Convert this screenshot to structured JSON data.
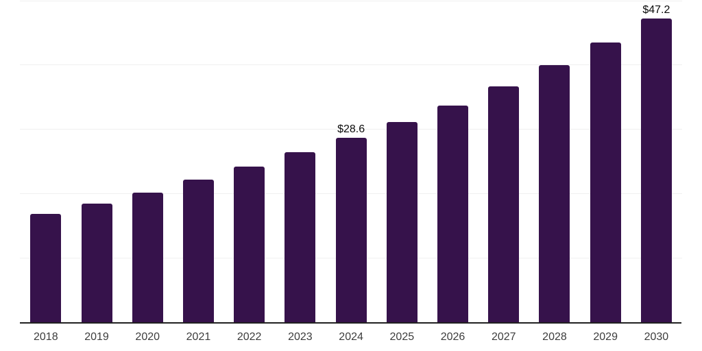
{
  "chart_data": {
    "type": "bar",
    "title": "",
    "xlabel": "",
    "ylabel": "",
    "categories": [
      "2018",
      "2019",
      "2020",
      "2021",
      "2022",
      "2023",
      "2024",
      "2025",
      "2026",
      "2027",
      "2028",
      "2029",
      "2030"
    ],
    "values": [
      16.8,
      18.4,
      20.1,
      22.1,
      24.2,
      26.4,
      28.6,
      31.1,
      33.7,
      36.6,
      39.9,
      43.4,
      47.2
    ],
    "point_labels": [
      "",
      "",
      "",
      "",
      "",
      "",
      "$28.6",
      "",
      "",
      "",
      "",
      "",
      "$47.2"
    ],
    "ylim": [
      0,
      50
    ],
    "gridline_step": 10,
    "grid": "horizontal",
    "legend": "none",
    "y_axis_tick_labels_visible": false,
    "colors": {
      "bar": "#36124B",
      "axis_line": "#212121",
      "gridline": "#F0F0F0",
      "tick_label": "#3C3C3C",
      "data_label": "#0A0A0A",
      "background": "#FFFFFF"
    }
  }
}
